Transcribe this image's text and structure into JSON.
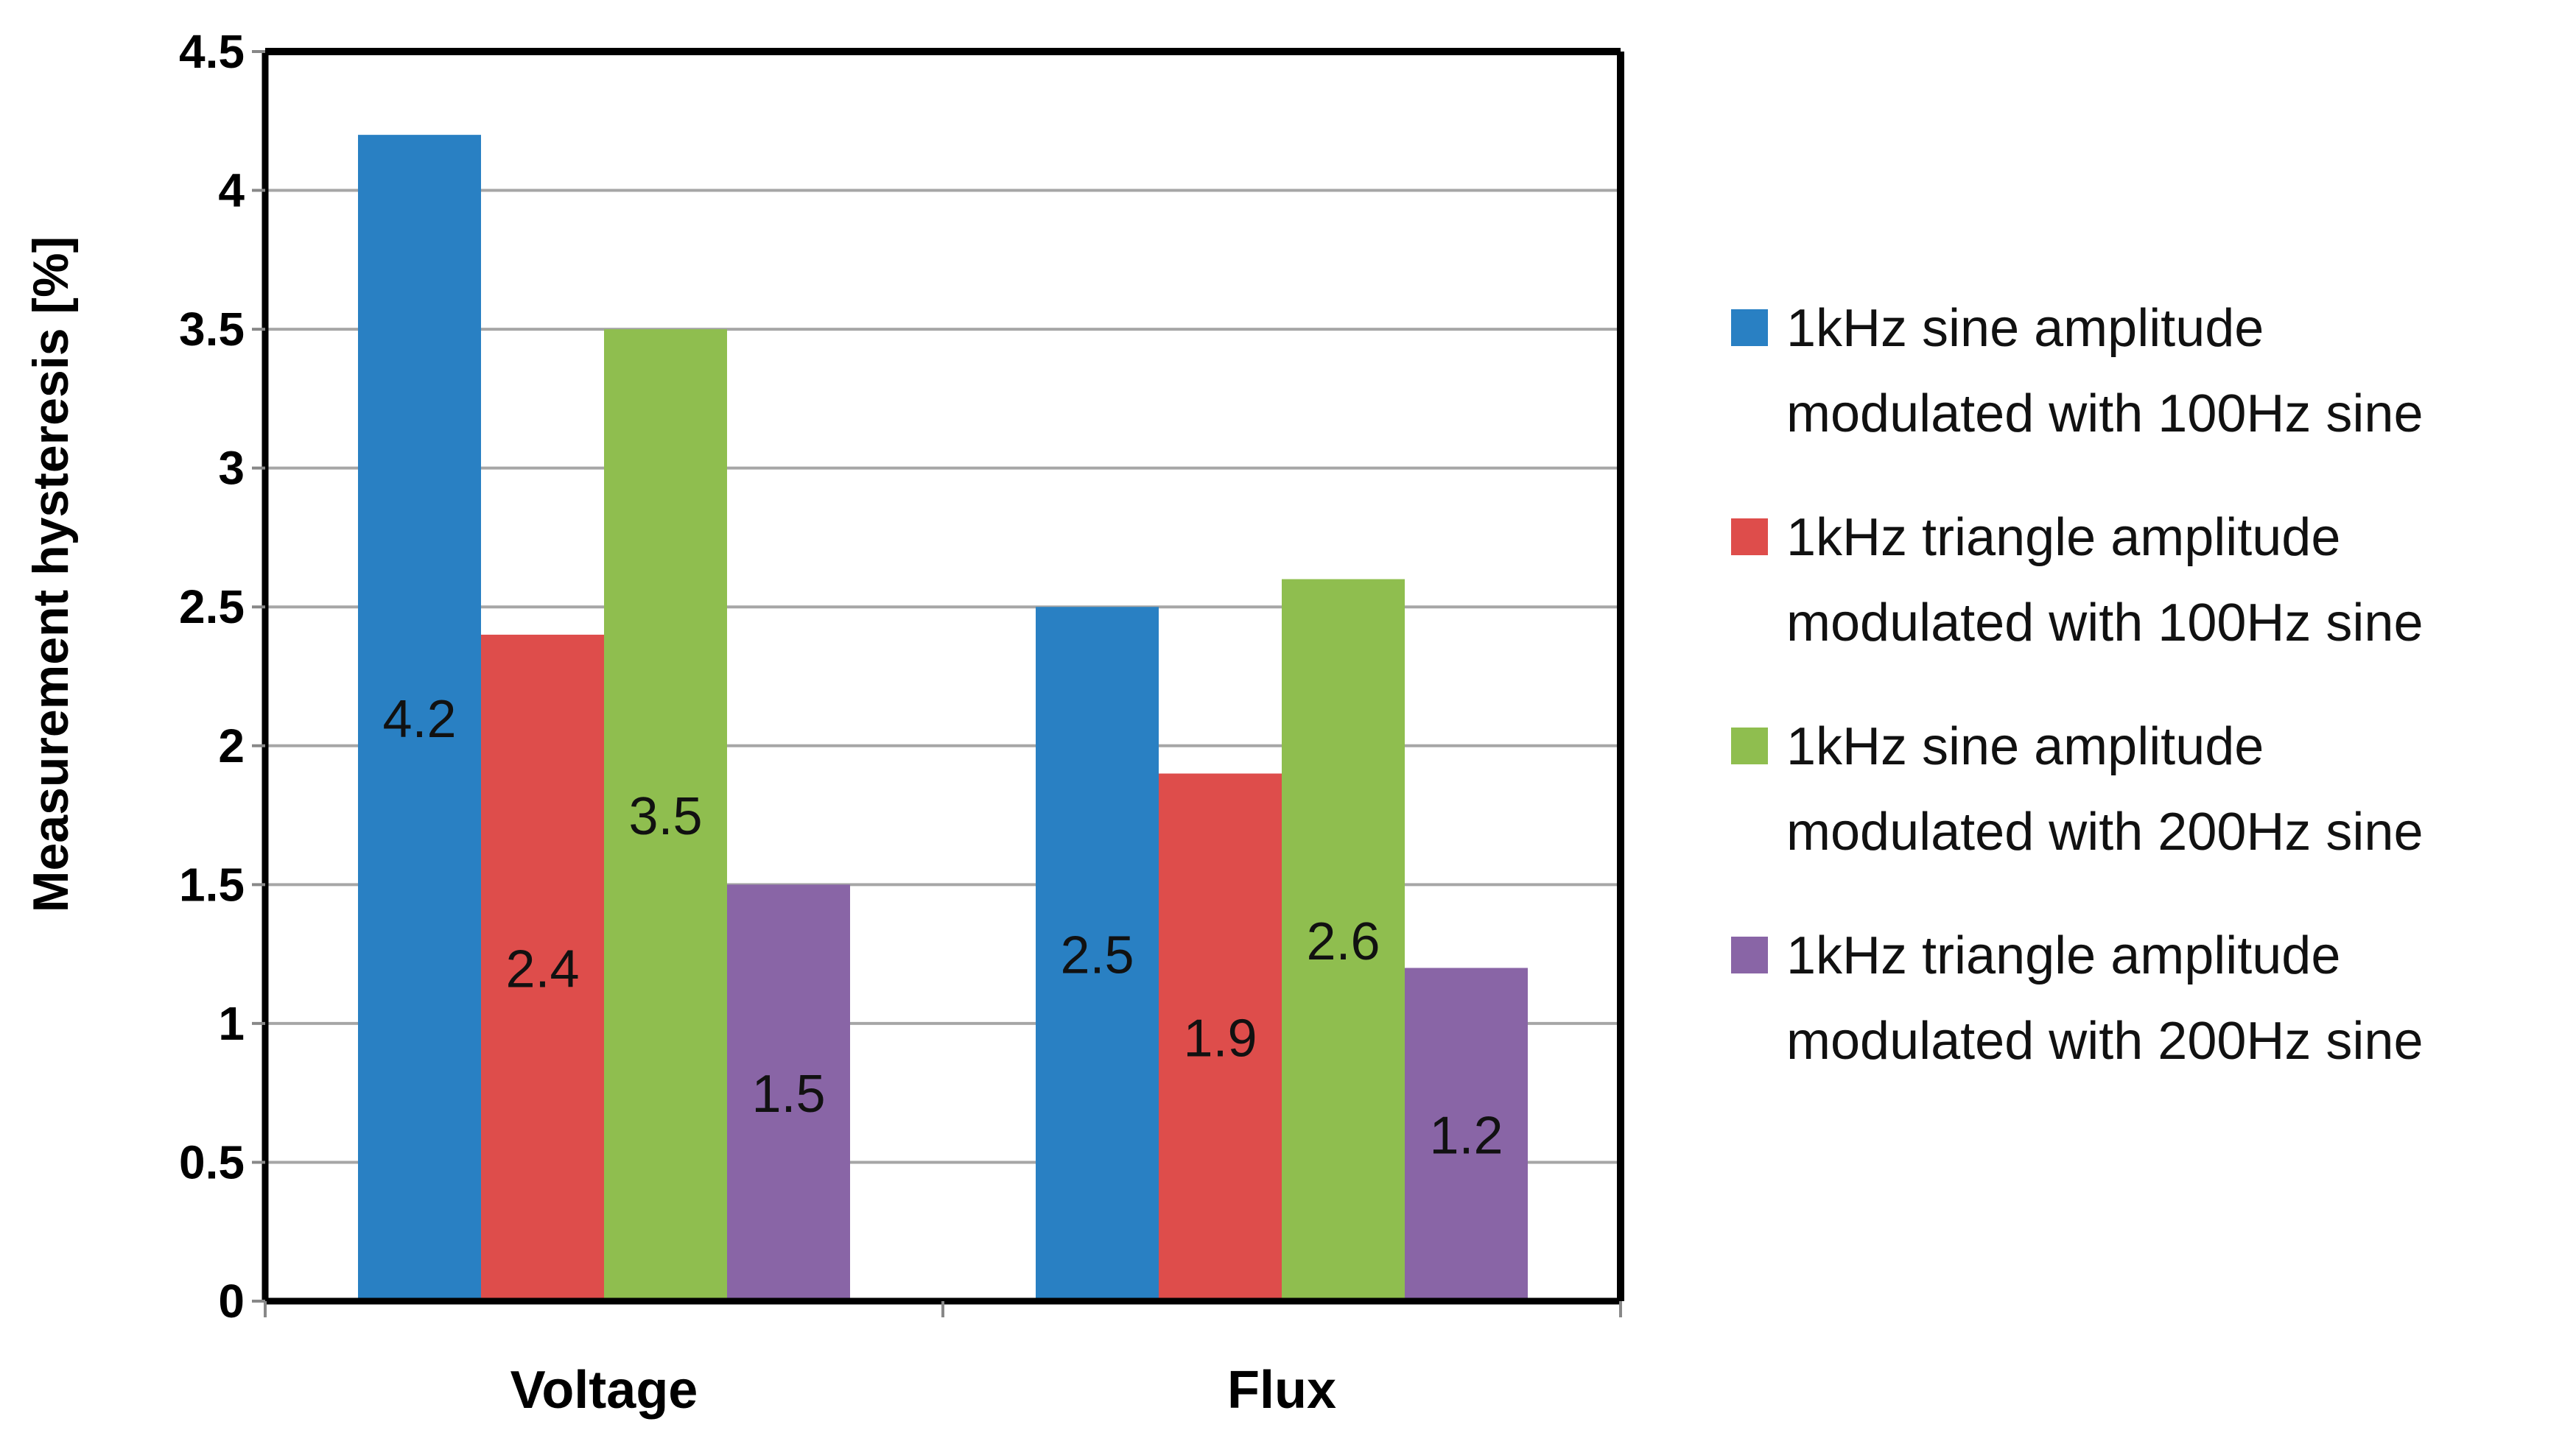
{
  "chart_data": {
    "type": "bar",
    "categories": [
      "Voltage",
      "Flux"
    ],
    "series": [
      {
        "name": "1kHz sine amplitude modulated with 100Hz sine",
        "values": [
          4.2,
          2.5
        ],
        "color": "#2980c3"
      },
      {
        "name": "1kHz triangle amplitude modulated with 100Hz sine",
        "values": [
          2.4,
          1.9
        ],
        "color": "#de4d4b"
      },
      {
        "name": "1kHz sine amplitude modulated with 200Hz sine",
        "values": [
          3.5,
          2.6
        ],
        "color": "#8fbe4f"
      },
      {
        "name": "1kHz triangle amplitude modulated with 200Hz sine",
        "values": [
          1.5,
          1.2
        ],
        "color": "#8965a6"
      }
    ],
    "legend_lines": [
      [
        "1kHz sine amplitude",
        "modulated with 100Hz sine"
      ],
      [
        "1kHz triangle amplitude",
        "modulated with 100Hz sine"
      ],
      [
        "1kHz sine amplitude",
        "modulated with 200Hz sine"
      ],
      [
        "1kHz triangle amplitude",
        "modulated with 200Hz sine"
      ]
    ],
    "data_labels": [
      [
        "4.2",
        "2.5"
      ],
      [
        "2.4",
        "1.9"
      ],
      [
        "3.5",
        "2.6"
      ],
      [
        "1.5",
        "1.2"
      ]
    ],
    "yticks": [
      "0",
      "0.5",
      "1",
      "1.5",
      "2",
      "2.5",
      "3",
      "3.5",
      "4",
      "4.5"
    ],
    "ylim": [
      0,
      4.5
    ],
    "ystep": 0.5,
    "ylabel": "Measurement hysteresis [%]",
    "xlabel": "",
    "title": "",
    "grid": true,
    "legend_position": "right"
  }
}
